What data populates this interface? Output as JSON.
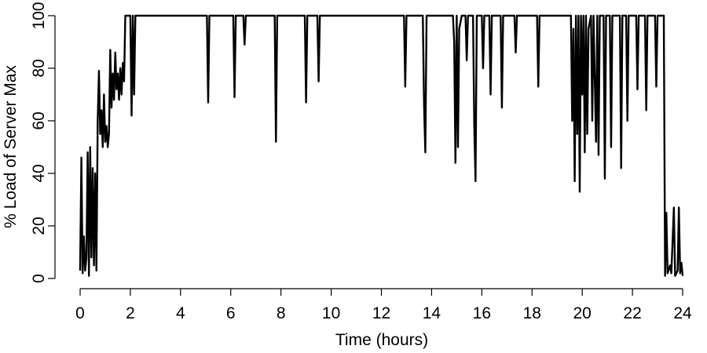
{
  "chart_data": {
    "type": "line",
    "xlabel": "Time (hours)",
    "ylabel": "% Load of Server Max",
    "xlim": [
      0,
      24
    ],
    "ylim": [
      0,
      100
    ],
    "xticks": [
      0,
      2,
      4,
      6,
      8,
      10,
      12,
      14,
      16,
      18,
      20,
      22,
      24
    ],
    "yticks": [
      0,
      20,
      40,
      60,
      80,
      100
    ],
    "series": [
      {
        "color": "#000000",
        "x": [
          0.0,
          0.05,
          0.1,
          0.15,
          0.2,
          0.25,
          0.3,
          0.35,
          0.4,
          0.45,
          0.5,
          0.55,
          0.6,
          0.65,
          0.7,
          0.75,
          0.8,
          0.85,
          0.9,
          0.95,
          1.0,
          1.05,
          1.1,
          1.15,
          1.2,
          1.25,
          1.3,
          1.35,
          1.4,
          1.45,
          1.5,
          1.55,
          1.6,
          1.65,
          1.7,
          1.75,
          1.8,
          2.0,
          2.05,
          2.1,
          2.15,
          2.2,
          5.05,
          5.1,
          5.15,
          6.1,
          6.15,
          6.2,
          6.5,
          6.55,
          6.6,
          7.75,
          7.8,
          7.85,
          8.95,
          9.0,
          9.05,
          9.45,
          9.5,
          9.55,
          12.9,
          12.95,
          13.0,
          13.65,
          13.7,
          13.75,
          13.8,
          14.85,
          14.9,
          14.95,
          15.0,
          15.05,
          15.1,
          15.2,
          15.35,
          15.4,
          15.45,
          15.65,
          15.7,
          15.75,
          15.8,
          16.0,
          16.05,
          16.1,
          16.3,
          16.35,
          16.4,
          16.75,
          16.8,
          16.85,
          17.3,
          17.35,
          17.4,
          18.2,
          18.25,
          18.3,
          19.55,
          19.6,
          19.65,
          19.7,
          19.75,
          19.8,
          19.85,
          19.9,
          19.95,
          20.0,
          20.05,
          20.1,
          20.15,
          20.2,
          20.25,
          20.35,
          20.4,
          20.45,
          20.55,
          20.6,
          20.65,
          20.7,
          20.85,
          20.9,
          20.95,
          21.1,
          21.15,
          21.2,
          21.5,
          21.55,
          21.6,
          21.75,
          21.8,
          21.85,
          22.15,
          22.2,
          22.25,
          22.5,
          22.55,
          22.6,
          22.9,
          22.95,
          23.0,
          23.25,
          23.3,
          23.35,
          23.4,
          23.5,
          23.55,
          23.65,
          23.7,
          23.8,
          23.85,
          23.9,
          23.95,
          24.0
        ],
        "values": [
          3,
          46,
          2,
          16,
          3,
          8,
          48,
          1,
          50,
          8,
          42,
          5,
          40,
          3,
          60,
          79,
          55,
          64,
          50,
          70,
          52,
          58,
          50,
          55,
          87,
          65,
          78,
          68,
          86,
          72,
          78,
          68,
          80,
          70,
          82,
          75,
          100,
          100,
          62,
          100,
          70,
          100,
          100,
          67,
          100,
          100,
          69,
          100,
          100,
          89,
          100,
          100,
          52,
          100,
          100,
          67,
          100,
          100,
          75,
          100,
          100,
          73,
          100,
          100,
          66,
          48,
          100,
          100,
          90,
          44,
          100,
          50,
          95,
          100,
          100,
          83,
          100,
          100,
          58,
          37,
          100,
          100,
          80,
          100,
          100,
          70,
          100,
          100,
          65,
          100,
          100,
          86,
          100,
          100,
          73,
          100,
          100,
          60,
          95,
          37,
          100,
          55,
          100,
          33,
          100,
          70,
          100,
          48,
          100,
          55,
          95,
          100,
          60,
          100,
          52,
          100,
          47,
          100,
          100,
          38,
          100,
          100,
          50,
          100,
          100,
          42,
          100,
          100,
          60,
          100,
          100,
          72,
          100,
          100,
          64,
          100,
          100,
          73,
          100,
          100,
          1,
          25,
          2,
          5,
          2,
          27,
          1,
          3,
          27,
          2,
          6,
          1
        ]
      }
    ]
  }
}
